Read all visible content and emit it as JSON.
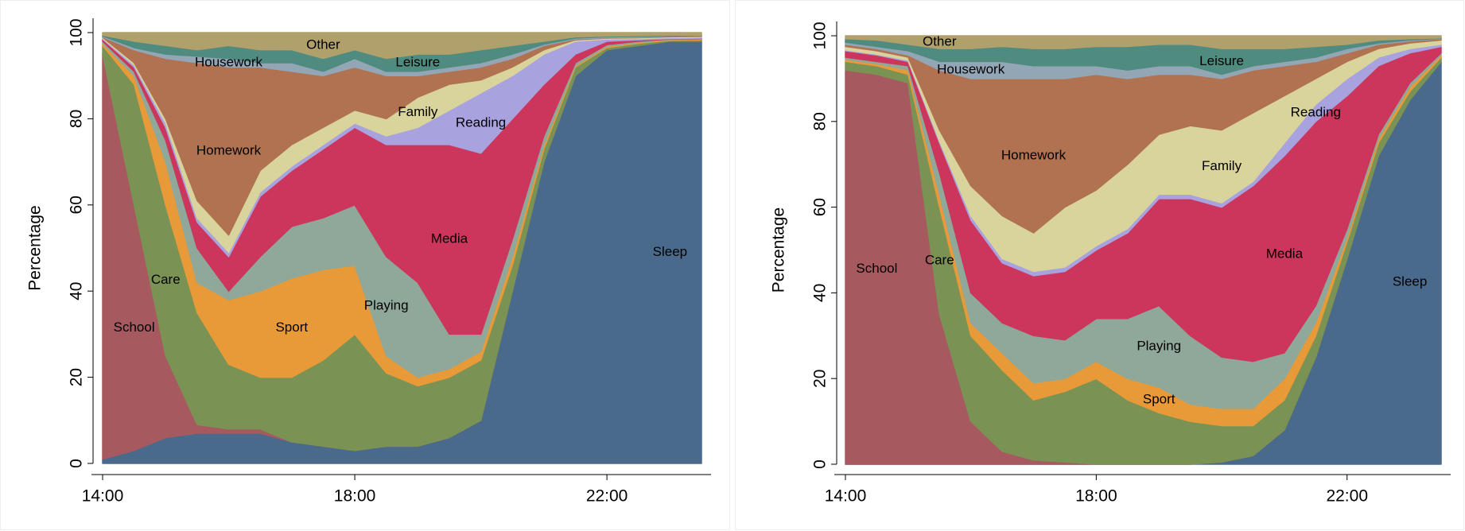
{
  "chart_data": [
    {
      "type": "stacked-area",
      "ylabel": "Percentage",
      "x": [
        14,
        14.5,
        15,
        15.5,
        16,
        16.5,
        17,
        17.5,
        18,
        18.5,
        19,
        19.5,
        20,
        20.5,
        21,
        21.5,
        22,
        22.5,
        23,
        23.5
      ],
      "xlim": [
        14,
        23.5
      ],
      "ylim": [
        0,
        100
      ],
      "yticks": [
        0,
        20,
        40,
        60,
        80,
        100
      ],
      "xticks": [
        {
          "value": 14,
          "label": "14:00"
        },
        {
          "value": 18,
          "label": "18:00"
        },
        {
          "value": 22,
          "label": "22:00"
        }
      ],
      "series": [
        {
          "name": "Sleep",
          "color": "#4a6a8c",
          "values": [
            1,
            3,
            6,
            7,
            7,
            7,
            5,
            4,
            3,
            4,
            4,
            6,
            10,
            40,
            70,
            90,
            96,
            97,
            98,
            98
          ]
        },
        {
          "name": "School",
          "color": "#a65a60",
          "values": [
            94,
            57,
            19,
            2,
            1,
            1,
            0,
            0,
            0,
            0,
            0,
            0,
            0,
            0,
            0,
            0,
            0,
            0,
            0,
            0
          ]
        },
        {
          "name": "Care",
          "color": "#7a9254",
          "values": [
            2,
            28,
            35,
            26,
            15,
            12,
            15,
            20,
            27,
            17,
            14,
            14,
            14,
            6,
            3,
            2,
            0.5,
            0.5,
            0.2,
            0.3
          ]
        },
        {
          "name": "Sport",
          "color": "#e99a38",
          "values": [
            0.5,
            2,
            10,
            7,
            15,
            20,
            23,
            21,
            16,
            4,
            2,
            2,
            2,
            2,
            1,
            0.3,
            0.3,
            0.2,
            0.2,
            0.2
          ]
        },
        {
          "name": "Playing",
          "color": "#8fa89a",
          "values": [
            0.5,
            1,
            5,
            8,
            2,
            8,
            12,
            12,
            14,
            23,
            22,
            8,
            4,
            4,
            2,
            0.7,
            0.4,
            0.3,
            0.1,
            0.1
          ]
        },
        {
          "name": "Media",
          "color": "#cc365c",
          "values": [
            0.5,
            1,
            3,
            6,
            8,
            14,
            13,
            16,
            18,
            26,
            32,
            44,
            42,
            28,
            12,
            2,
            0.8,
            0.3,
            0.1,
            0.1
          ]
        },
        {
          "name": "Reading",
          "color": "#a8a2df",
          "values": [
            0.2,
            0.5,
            1,
            1,
            1,
            1,
            1,
            1,
            1,
            2,
            4,
            8,
            14,
            10,
            7,
            3,
            0.5,
            0.3,
            0.2,
            0.2
          ]
        },
        {
          "name": "Family",
          "color": "#d9d39c",
          "values": [
            0.2,
            0.5,
            1,
            4,
            4,
            5,
            5,
            4,
            3,
            4,
            7,
            6,
            3,
            2,
            1,
            0.3,
            0.2,
            0.2,
            0.2,
            0.2
          ]
        },
        {
          "name": "Homework",
          "color": "#b07251",
          "values": [
            0.1,
            3,
            14,
            32,
            39,
            24,
            17,
            12,
            10,
            10,
            5,
            3,
            3,
            2,
            1,
            0.2,
            0.1,
            0.1,
            0.1,
            0.1
          ]
        },
        {
          "name": "Housework",
          "color": "#93a6b6",
          "values": [
            0.2,
            0.5,
            1,
            1.5,
            2,
            1,
            2,
            1,
            2,
            1,
            1,
            1,
            1,
            1,
            0.3,
            0.2,
            0.2,
            0.2,
            0.1,
            0.1
          ]
        },
        {
          "name": "Leisure",
          "color": "#4f8b7f",
          "values": [
            0.2,
            1.5,
            2,
            1.5,
            3,
            3,
            3,
            3,
            2,
            3,
            4,
            3,
            3,
            2,
            0.7,
            0.3,
            0.2,
            0.2,
            0.2,
            0.1
          ]
        },
        {
          "name": "Other",
          "color": "#b0a06c",
          "values": [
            0.6,
            2,
            3,
            4,
            3,
            4,
            4,
            6,
            4,
            6,
            5,
            5,
            4,
            3,
            2,
            1,
            0.8,
            0.7,
            0.6,
            0.6
          ]
        }
      ]
    },
    {
      "type": "stacked-area",
      "ylabel": "Percentage",
      "x": [
        14,
        14.5,
        15,
        15.5,
        16,
        16.5,
        17,
        17.5,
        18,
        18.5,
        19,
        19.5,
        20,
        20.5,
        21,
        21.5,
        22,
        22.5,
        23,
        23.5
      ],
      "xlim": [
        14,
        23.5
      ],
      "ylim": [
        0,
        100
      ],
      "yticks": [
        0,
        20,
        40,
        60,
        80,
        100
      ],
      "xticks": [
        {
          "value": 14,
          "label": "14:00"
        },
        {
          "value": 18,
          "label": "18:00"
        },
        {
          "value": 22,
          "label": "22:00"
        }
      ],
      "series": [
        {
          "name": "Sleep",
          "color": "#4a6a8c",
          "values": [
            0,
            0,
            0,
            0,
            0,
            0,
            0,
            0,
            0,
            0,
            0,
            0,
            0.5,
            2,
            8,
            25,
            48,
            72,
            85,
            94
          ]
        },
        {
          "name": "School",
          "color": "#a65a60",
          "values": [
            92,
            91,
            89,
            35,
            10,
            3,
            1,
            0.5,
            0,
            0,
            0,
            0,
            0,
            0,
            0,
            0,
            0,
            0,
            0,
            0
          ]
        },
        {
          "name": "Care",
          "color": "#7a9254",
          "values": [
            2,
            2,
            2,
            25,
            20,
            19,
            14,
            16.5,
            20,
            15,
            12,
            10,
            8.5,
            7,
            7,
            5,
            4,
            3,
            2,
            1
          ]
        },
        {
          "name": "Sport",
          "color": "#e99a38",
          "values": [
            0.5,
            0.5,
            1,
            3,
            3,
            4,
            4,
            3,
            4,
            5,
            6,
            4,
            4,
            4,
            5,
            3,
            1,
            1,
            1,
            0.5
          ]
        },
        {
          "name": "Playing",
          "color": "#8fa89a",
          "values": [
            0.5,
            0.5,
            1,
            5,
            7,
            7,
            11,
            9,
            10,
            14,
            19,
            16,
            12,
            11,
            6,
            4,
            2,
            1,
            1,
            0.5
          ]
        },
        {
          "name": "Media",
          "color": "#cc365c",
          "values": [
            1.5,
            1.5,
            1,
            7,
            17,
            14,
            14,
            16,
            16,
            20,
            25,
            32,
            35,
            41,
            46,
            43,
            31,
            16,
            7,
            1.5
          ]
        },
        {
          "name": "Reading",
          "color": "#a8a2df",
          "values": [
            0.2,
            0.2,
            0.3,
            0.5,
            1,
            1,
            1,
            1,
            1,
            1,
            1,
            1,
            1,
            1,
            3,
            4,
            4,
            2,
            1,
            0.5
          ]
        },
        {
          "name": "Family",
          "color": "#d9d39c",
          "values": [
            0.8,
            0.8,
            0.7,
            2.5,
            7,
            10,
            9,
            14,
            13,
            15,
            14,
            16,
            17,
            16,
            11,
            6,
            4,
            2,
            1.3,
            1
          ]
        },
        {
          "name": "Homework",
          "color": "#b07251",
          "values": [
            0.5,
            0.5,
            0.5,
            14,
            25,
            32,
            36,
            30,
            27,
            20,
            14,
            12,
            12,
            10,
            7,
            4,
            2,
            1,
            0.5,
            0.3
          ]
        },
        {
          "name": "Housework",
          "color": "#93a6b6",
          "values": [
            0.5,
            0.5,
            1,
            2,
            4,
            4,
            3,
            3,
            2,
            2,
            2,
            2,
            1,
            1,
            1,
            1,
            1,
            0.3,
            0.2,
            0.1
          ]
        },
        {
          "name": "Leisure",
          "color": "#4f8b7f",
          "values": [
            0.8,
            1.5,
            1.5,
            3,
            3,
            3.5,
            4,
            4,
            4.5,
            5.5,
            5,
            5,
            6,
            4,
            3,
            2.5,
            1,
            0.7,
            0.3,
            0.1
          ]
        },
        {
          "name": "Other",
          "color": "#b0a06c",
          "values": [
            0.7,
            1,
            2,
            3,
            3,
            2.5,
            3,
            3,
            2.5,
            2.5,
            2,
            2,
            3,
            3,
            3,
            2.5,
            2,
            1,
            0.7,
            0.5
          ]
        }
      ]
    }
  ]
}
